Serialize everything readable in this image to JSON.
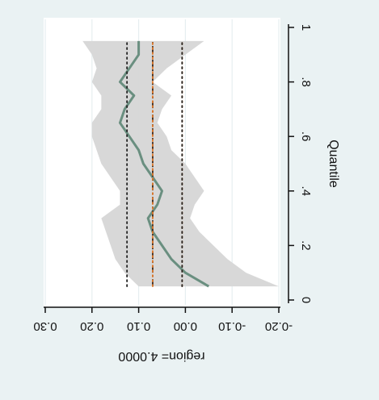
{
  "chart_data": {
    "type": "line",
    "orientation": "rotated-90",
    "title": "",
    "subtitle": "region= 4.0000",
    "xlabel": "Quantile",
    "ylabel": "",
    "xlim": [
      0,
      1
    ],
    "ylim": [
      -0.2,
      0.3
    ],
    "x_ticks": [
      0,
      0.2,
      0.4,
      0.6,
      0.8,
      1
    ],
    "x_tick_labels": [
      "0",
      ".2",
      ".4",
      ".6",
      ".8",
      "1"
    ],
    "y_ticks": [
      -0.2,
      -0.1,
      0,
      0.1,
      0.2,
      0.3
    ],
    "y_tick_labels": [
      "-0.20",
      "-0.10",
      "0.00",
      "0.10",
      "0.20",
      "0.30"
    ],
    "grid": true,
    "legend": "none",
    "x": [
      0.05,
      0.1,
      0.15,
      0.2,
      0.25,
      0.3,
      0.35,
      0.4,
      0.45,
      0.5,
      0.55,
      0.6,
      0.65,
      0.7,
      0.75,
      0.8,
      0.85,
      0.9,
      0.95
    ],
    "series": [
      {
        "style": "solid",
        "color": "#6a8f80",
        "values": [
          -0.05,
          0.0,
          0.03,
          0.05,
          0.07,
          0.08,
          0.06,
          0.05,
          0.07,
          0.09,
          0.1,
          0.12,
          0.14,
          0.13,
          0.11,
          0.14,
          0.12,
          0.1,
          0.1
        ]
      },
      {
        "style": "band",
        "color": "#d6d6d6",
        "lower": [
          -0.2,
          -0.13,
          -0.09,
          -0.06,
          -0.03,
          -0.01,
          -0.02,
          -0.04,
          -0.02,
          0.0,
          0.03,
          0.04,
          0.06,
          0.05,
          0.03,
          0.07,
          0.04,
          0.0,
          -0.04
        ],
        "upper": [
          0.1,
          0.13,
          0.15,
          0.16,
          0.17,
          0.18,
          0.14,
          0.14,
          0.16,
          0.18,
          0.19,
          0.2,
          0.2,
          0.18,
          0.18,
          0.2,
          0.19,
          0.2,
          0.22
        ]
      },
      {
        "style": "dash-dot",
        "color": "#3a2a20",
        "values": [
          0.07,
          0.07,
          0.07,
          0.07,
          0.07,
          0.07,
          0.07,
          0.07,
          0.07,
          0.07,
          0.07,
          0.07,
          0.07,
          0.07,
          0.07,
          0.07,
          0.07,
          0.07,
          0.07
        ]
      },
      {
        "style": "dotted",
        "color": "#e0792a",
        "values": [
          0.07,
          0.07,
          0.07,
          0.07,
          0.07,
          0.07,
          0.07,
          0.07,
          0.07,
          0.07,
          0.07,
          0.07,
          0.07,
          0.07,
          0.07,
          0.07,
          0.07,
          0.07,
          0.07
        ]
      },
      {
        "style": "dotted",
        "color": "#222222",
        "values": [
          0.125,
          0.125,
          0.125,
          0.125,
          0.125,
          0.125,
          0.125,
          0.125,
          0.125,
          0.125,
          0.125,
          0.125,
          0.125,
          0.125,
          0.125,
          0.125,
          0.125,
          0.125,
          0.125
        ]
      },
      {
        "style": "dotted",
        "color": "#e0792a",
        "values": [
          0.007,
          0.007,
          0.007,
          0.007,
          0.007,
          0.007,
          0.007,
          0.007,
          0.007,
          0.007,
          0.007,
          0.007,
          0.007,
          0.007,
          0.007,
          0.007,
          0.007,
          0.007,
          0.007
        ]
      },
      {
        "style": "dotted",
        "color": "#222222",
        "values": [
          0.007,
          0.007,
          0.007,
          0.007,
          0.007,
          0.007,
          0.007,
          0.007,
          0.007,
          0.007,
          0.007,
          0.007,
          0.007,
          0.007,
          0.007,
          0.007,
          0.007,
          0.007,
          0.007
        ]
      }
    ],
    "colors": {
      "background": "#eaf2f3",
      "plot_background": "#ffffff",
      "grid": "#e6eef0",
      "axis": "#111111"
    }
  }
}
